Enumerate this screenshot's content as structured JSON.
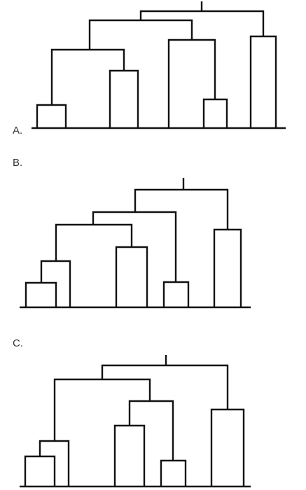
{
  "options": [
    {
      "id": "A",
      "label": "A."
    },
    {
      "id": "B",
      "label": "B."
    },
    {
      "id": "C",
      "label": "C."
    }
  ]
}
